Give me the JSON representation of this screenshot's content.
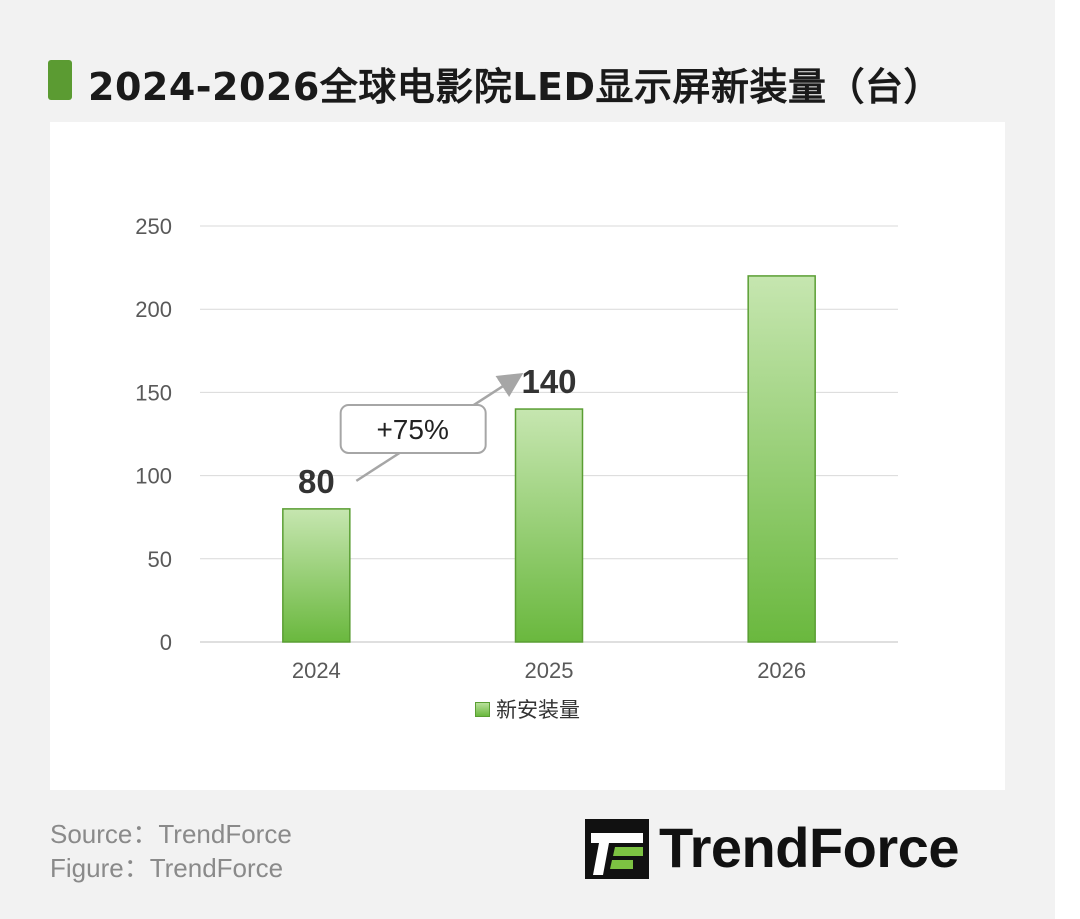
{
  "title": "2024-2026全球电影院LED显示屏新装量（台）",
  "colors": {
    "accent": "#5b9b32",
    "bar_top": "#c6e6b0",
    "bar_bottom": "#6ab83e",
    "bar_border": "#5a9e33"
  },
  "chart_data": {
    "type": "bar",
    "categories": [
      "2024",
      "2025",
      "2026"
    ],
    "series": [
      {
        "name": "新安装量",
        "values": [
          80,
          140,
          220
        ]
      }
    ],
    "data_labels": [
      "80",
      "140",
      ""
    ],
    "annotation": {
      "text": "+75%",
      "from": "2024",
      "to": "2025"
    },
    "yticks": [
      "0",
      "50",
      "100",
      "150",
      "200",
      "250"
    ],
    "ylim": [
      0,
      250
    ],
    "grid": true,
    "legend": "bottom"
  },
  "footer": {
    "source": "Source：TrendForce",
    "figure": "Figure：TrendForce"
  },
  "logo": {
    "text": "TrendForce"
  }
}
